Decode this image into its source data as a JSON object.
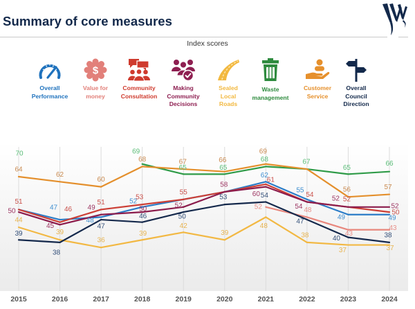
{
  "header": {
    "title": "Summary of core measures"
  },
  "chart_subtitle": "Index scores",
  "legend": [
    {
      "name": "Overall Performance",
      "label_lines": [
        "Overall",
        "Performance"
      ],
      "icon": "speedometer-icon",
      "color": "#1f72bd"
    },
    {
      "name": "Value for money",
      "label_lines": [
        "Value for",
        "money"
      ],
      "icon": "dollar-badge-icon",
      "color": "#e2807a"
    },
    {
      "name": "Community Consultation",
      "label_lines": [
        "Community",
        "Consultation"
      ],
      "icon": "consultation-icon",
      "color": "#cf3b2e"
    },
    {
      "name": "Making Community Decisions",
      "label_lines": [
        "Making",
        "Community",
        "Decisions"
      ],
      "icon": "decisions-icon",
      "color": "#8e1f51"
    },
    {
      "name": "Sealed Local Roads",
      "label_lines": [
        "Sealed",
        "Local",
        "Roads"
      ],
      "icon": "road-icon",
      "color": "#f2b83f"
    },
    {
      "name": "Waste management",
      "label_lines": [
        "Waste",
        "management"
      ],
      "icon": "trash-bin-icon",
      "color": "#2e8b3e"
    },
    {
      "name": "Customer Service",
      "label_lines": [
        "Customer",
        "Service"
      ],
      "icon": "customer-service-icon",
      "color": "#e6902c"
    },
    {
      "name": "Overall Council Direction",
      "label_lines": [
        "Overall",
        "Council",
        "Direction"
      ],
      "icon": "signpost-icon",
      "color": "#13294b"
    }
  ],
  "chart_data": {
    "type": "line",
    "title": "Index scores",
    "xlabel": "",
    "ylabel": "",
    "ylim": [
      30,
      75
    ],
    "grid": "vertical",
    "legend": "top",
    "categories": [
      "2015",
      "2016",
      "2017",
      "2018",
      "2019",
      "2020",
      "2021",
      "2022",
      "2023",
      "2024"
    ],
    "series": [
      {
        "name": "Overall Performance",
        "color": "#2b7cc7",
        "label_color": "#3f8fd1",
        "values": [
          51,
          47,
          48,
          52,
          55,
          58,
          62,
          55,
          49,
          49
        ],
        "labels_shown": [
          false,
          true,
          true,
          true,
          false,
          false,
          true,
          true,
          true,
          true
        ]
      },
      {
        "name": "Value for money",
        "color": "#e8877d",
        "label_color": "#e8908a",
        "values": [
          null,
          null,
          null,
          null,
          null,
          null,
          52,
          48,
          43,
          43
        ],
        "labels_shown": [
          false,
          false,
          false,
          false,
          false,
          false,
          true,
          true,
          true,
          true
        ]
      },
      {
        "name": "Community Consultation",
        "color": "#cc3f36",
        "label_color": "#c9504a",
        "values": [
          51,
          46,
          51,
          53,
          55,
          58,
          61,
          54,
          52,
          50
        ],
        "labels_shown": [
          true,
          true,
          true,
          true,
          true,
          false,
          true,
          true,
          true,
          true
        ]
      },
      {
        "name": "Making Community Decisions",
        "color": "#8b1c4c",
        "label_color": "#9c3562",
        "values": [
          50,
          45,
          49,
          50,
          52,
          58,
          60,
          54,
          52,
          52
        ],
        "labels_shown": [
          true,
          true,
          true,
          true,
          true,
          true,
          true,
          true,
          true,
          true
        ]
      },
      {
        "name": "Sealed Local Roads",
        "color": "#f2b843",
        "label_color": "#e8b450",
        "values": [
          44,
          39,
          36,
          39,
          42,
          39,
          48,
          38,
          37,
          37
        ],
        "labels_shown": [
          true,
          true,
          true,
          true,
          true,
          true,
          true,
          true,
          true,
          true
        ]
      },
      {
        "name": "Waste management",
        "color": "#2f9b48",
        "label_color": "#5bbd78",
        "values": [
          70,
          null,
          null,
          69,
          65,
          65,
          68,
          67,
          65,
          66
        ],
        "labels_shown": [
          true,
          false,
          false,
          true,
          true,
          true,
          true,
          true,
          true,
          true
        ]
      },
      {
        "name": "Customer Service",
        "color": "#e48f2c",
        "label_color": "#c98a50",
        "values": [
          64,
          62,
          60,
          68,
          67,
          66,
          69,
          67,
          56,
          57
        ],
        "labels_shown": [
          true,
          true,
          true,
          true,
          true,
          true,
          true,
          false,
          true,
          true
        ]
      },
      {
        "name": "Overall Council Direction",
        "color": "#15294c",
        "label_color": "#34507a",
        "values": [
          39,
          38,
          47,
          46,
          50,
          53,
          54,
          47,
          40,
          38
        ],
        "labels_shown": [
          true,
          true,
          true,
          true,
          true,
          true,
          true,
          true,
          true,
          true
        ]
      }
    ]
  }
}
